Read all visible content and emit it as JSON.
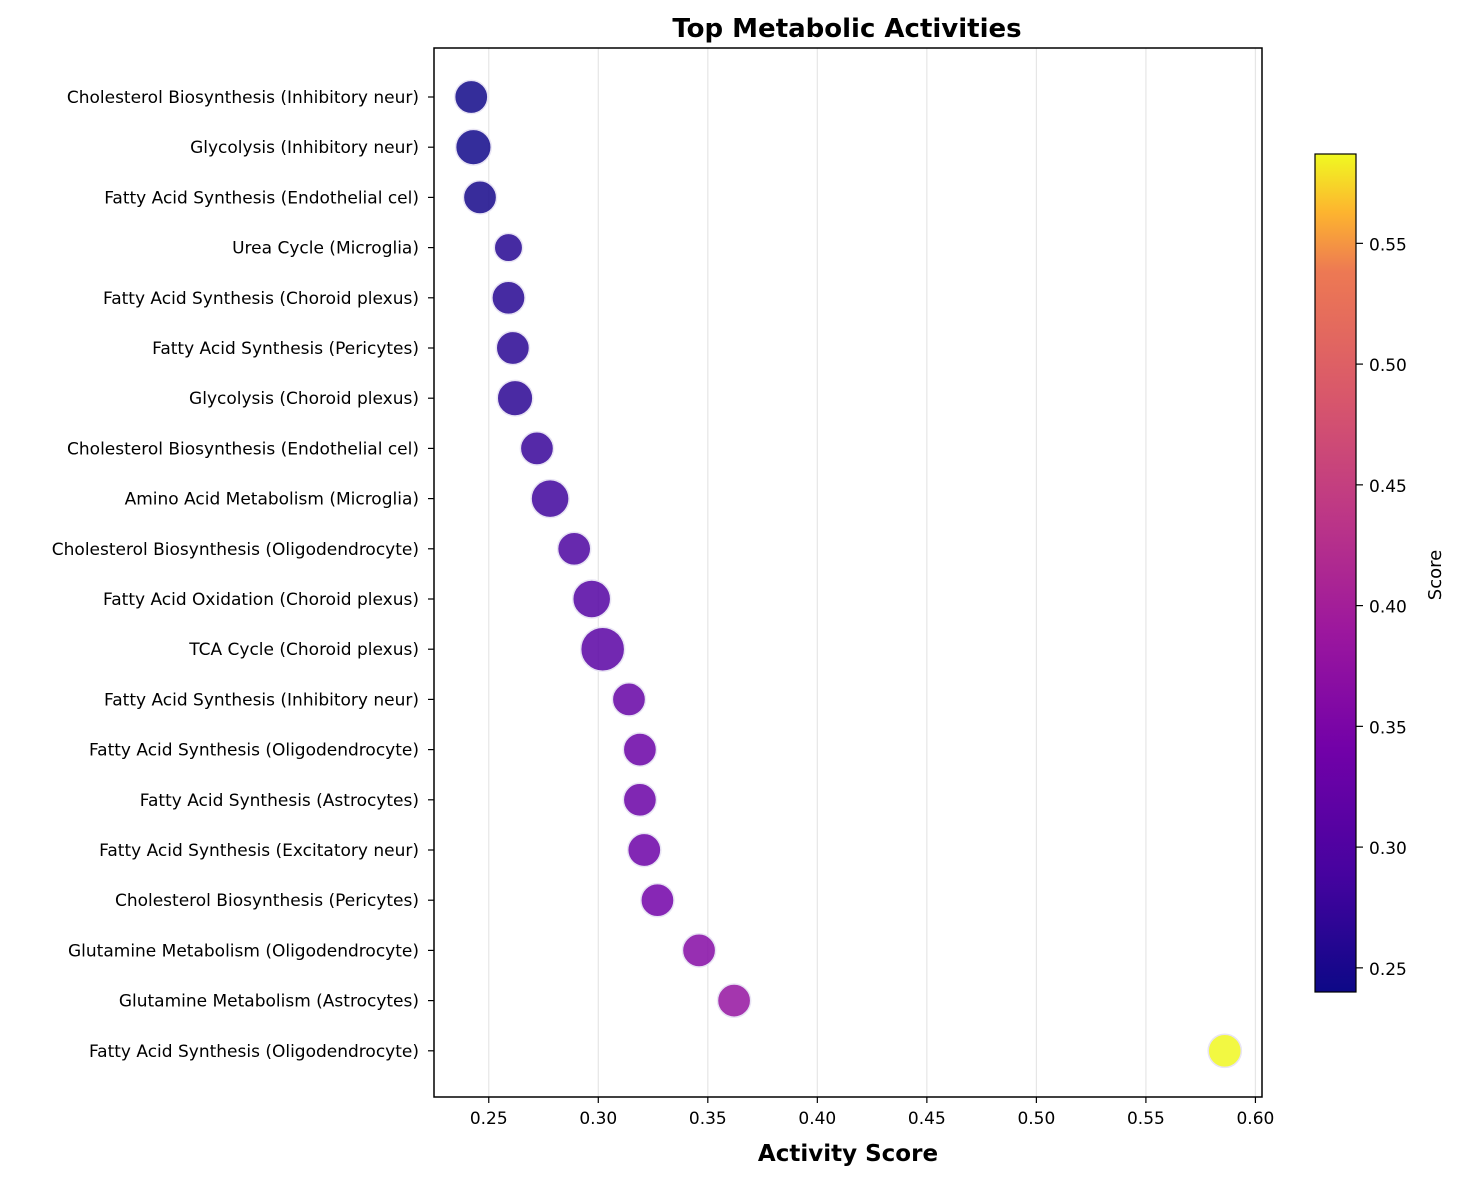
{
  "chart_data": {
    "type": "scatter",
    "title": "Top Metabolic Activities",
    "xlabel": "Activity Score",
    "ylabel": "",
    "xlim": [
      0.225,
      0.603
    ],
    "xticks": [
      0.25,
      0.3,
      0.35,
      0.4,
      0.45,
      0.5,
      0.55,
      0.6
    ],
    "xtick_labels": [
      "0.25",
      "0.30",
      "0.35",
      "0.40",
      "0.45",
      "0.50",
      "0.55",
      "0.60"
    ],
    "grid": "vertical",
    "colormap": "plasma",
    "colorbar": {
      "label": "Score",
      "range": [
        0.24,
        0.587
      ],
      "ticks": [
        0.25,
        0.3,
        0.35,
        0.4,
        0.45,
        0.5,
        0.55
      ],
      "tick_labels": [
        "0.25",
        "0.30",
        "0.35",
        "0.40",
        "0.45",
        "0.50",
        "0.55"
      ]
    },
    "points": [
      {
        "label": "Cholesterol Biosynthesis (Inhibitory neur)",
        "x": 0.242,
        "size": 0.55
      },
      {
        "label": "Glycolysis (Inhibitory neur)",
        "x": 0.243,
        "size": 0.65
      },
      {
        "label": "Fatty Acid Synthesis (Endothelial cel)",
        "x": 0.246,
        "size": 0.55
      },
      {
        "label": "Urea Cycle (Microglia)",
        "x": 0.259,
        "size": 0.35
      },
      {
        "label": "Fatty Acid Synthesis (Choroid plexus)",
        "x": 0.259,
        "size": 0.55
      },
      {
        "label": "Fatty Acid Synthesis (Pericytes)",
        "x": 0.261,
        "size": 0.55
      },
      {
        "label": "Glycolysis (Choroid plexus)",
        "x": 0.262,
        "size": 0.65
      },
      {
        "label": "Cholesterol Biosynthesis (Endothelial cel)",
        "x": 0.272,
        "size": 0.55
      },
      {
        "label": "Amino Acid Metabolism (Microglia)",
        "x": 0.278,
        "size": 0.75
      },
      {
        "label": "Cholesterol Biosynthesis (Oligodendrocyte)",
        "x": 0.289,
        "size": 0.55
      },
      {
        "label": "Fatty Acid Oxidation (Choroid plexus)",
        "x": 0.297,
        "size": 0.75
      },
      {
        "label": "TCA Cycle (Choroid plexus)",
        "x": 0.302,
        "size": 1.0
      },
      {
        "label": "Fatty Acid Synthesis (Inhibitory neur)",
        "x": 0.314,
        "size": 0.55
      },
      {
        "label": "Fatty Acid Synthesis (Oligodendrocyte)",
        "x": 0.319,
        "size": 0.55
      },
      {
        "label": "Fatty Acid Synthesis (Astrocytes)",
        "x": 0.319,
        "size": 0.55
      },
      {
        "label": "Fatty Acid Synthesis (Excitatory neur)",
        "x": 0.321,
        "size": 0.55
      },
      {
        "label": "Cholesterol Biosynthesis (Pericytes)",
        "x": 0.327,
        "size": 0.55
      },
      {
        "label": "Glutamine Metabolism (Oligodendrocyte)",
        "x": 0.346,
        "size": 0.55
      },
      {
        "label": "Glutamine Metabolism (Astrocytes)",
        "x": 0.362,
        "size": 0.55
      },
      {
        "label": "Fatty Acid Synthesis (Oligodendrocyte)",
        "x": 0.586,
        "size": 0.55
      }
    ]
  }
}
